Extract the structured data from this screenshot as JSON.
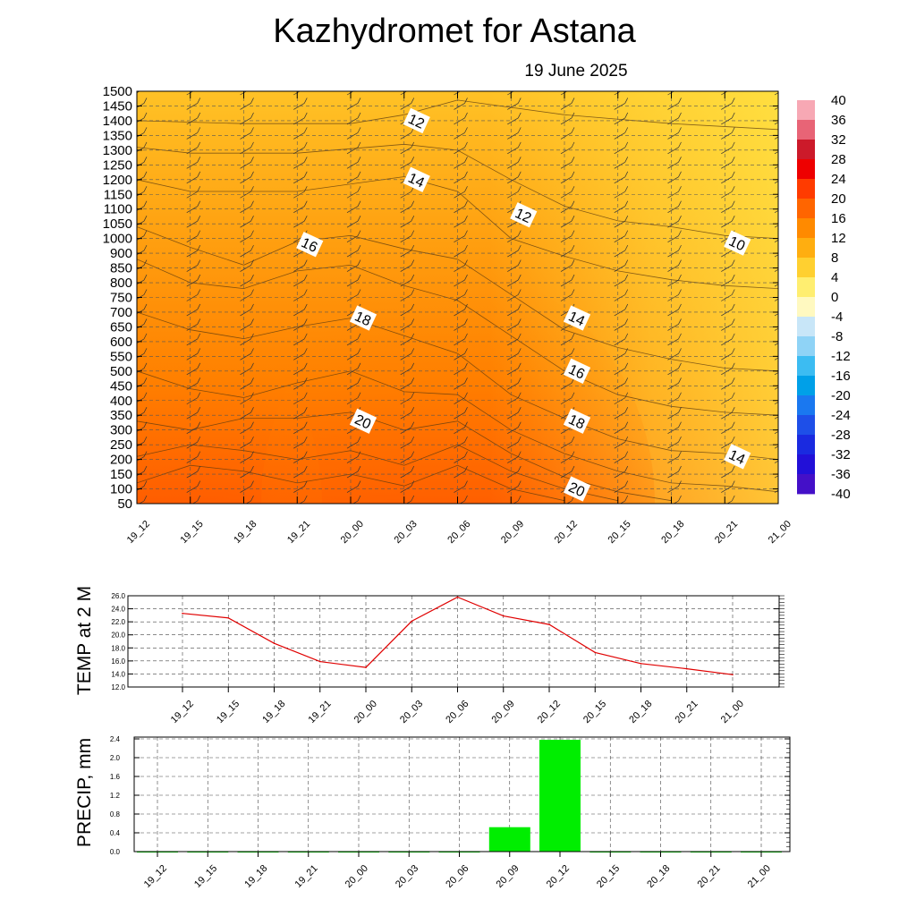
{
  "title": "Kazhydromet  for Astana",
  "subtitle": "19 June 2025",
  "time_labels": [
    "19_12",
    "19_15",
    "19_18",
    "19_21",
    "20_00",
    "20_03",
    "20_06",
    "20_09",
    "20_12",
    "20_15",
    "20_18",
    "20_21",
    "21_00"
  ],
  "chart_data": [
    {
      "type": "heatmap",
      "title": "",
      "description_hint": "",
      "x": [
        "19_12",
        "19_15",
        "19_18",
        "19_21",
        "20_00",
        "20_03",
        "20_06",
        "20_09",
        "20_12",
        "20_15",
        "20_18",
        "20_21",
        "21_00"
      ],
      "y_levels": [
        50,
        100,
        150,
        200,
        250,
        300,
        350,
        400,
        450,
        500,
        550,
        600,
        650,
        700,
        750,
        800,
        850,
        900,
        1000,
        1050,
        1100,
        1150,
        1200,
        1250,
        1300,
        1350,
        1400,
        1450,
        1500
      ],
      "y_ticks": [
        "1500",
        "1450",
        "1400",
        "1350",
        "1300",
        "1250",
        "1200",
        "1150",
        "1100",
        "1050",
        "1000",
        "900",
        "850",
        "800",
        "750",
        "700",
        "650",
        "600",
        "550",
        "500",
        "450",
        "400",
        "350",
        "300",
        "250",
        "200",
        "150",
        "100",
        "50"
      ],
      "colorbar": {
        "labels": [
          "40",
          "36",
          "32",
          "28",
          "24",
          "20",
          "16",
          "12",
          "8",
          "4",
          "0",
          "-4",
          "-8",
          "-12",
          "-16",
          "-20",
          "-24",
          "-28",
          "-32",
          "-36",
          "-40"
        ],
        "range": [
          -40,
          40
        ]
      },
      "contour_labels": [
        {
          "value": "12",
          "time": "20_03",
          "level": 1400
        },
        {
          "value": "14",
          "time": "20_03",
          "level": 1200
        },
        {
          "value": "12",
          "time": "20_09",
          "level": 1080
        },
        {
          "value": "16",
          "time": "19_21",
          "level": 960
        },
        {
          "value": "10",
          "time": "20_21",
          "level": 970
        },
        {
          "value": "18",
          "time": "20_00",
          "level": 680
        },
        {
          "value": "14",
          "time": "20_12",
          "level": 680
        },
        {
          "value": "16",
          "time": "20_12",
          "level": 500
        },
        {
          "value": "20",
          "time": "20_00",
          "level": 330
        },
        {
          "value": "18",
          "time": "20_12",
          "level": 330
        },
        {
          "value": "14",
          "time": "20_21",
          "level": 210
        },
        {
          "value": "20",
          "time": "20_12",
          "level": 100
        }
      ]
    },
    {
      "type": "line",
      "ylabel": "TEMP at 2 M",
      "x": [
        "19_12",
        "19_15",
        "19_18",
        "19_21",
        "20_00",
        "20_03",
        "20_06",
        "20_09",
        "20_12",
        "20_15",
        "20_18",
        "20_21",
        "21_00"
      ],
      "series": [
        {
          "values": [
            23.3,
            22.6,
            18.7,
            15.9,
            15.0,
            22.1,
            25.8,
            22.9,
            21.6,
            17.3,
            15.6,
            14.8,
            13.9
          ],
          "color": "#e00000"
        }
      ],
      "ylim": [
        12.0,
        26.0
      ],
      "y_ticks": [
        "26.0",
        "24.0",
        "22.0",
        "20.0",
        "18.0",
        "16.0",
        "14.0",
        "12.0"
      ]
    },
    {
      "type": "bar",
      "ylabel": "PRECIP, mm",
      "categories": [
        "19_12",
        "19_15",
        "19_18",
        "19_21",
        "20_00",
        "20_03",
        "20_06",
        "20_09",
        "20_12",
        "20_15",
        "20_18",
        "20_21",
        "21_00"
      ],
      "values": [
        0,
        0,
        0,
        0,
        0,
        0,
        0,
        0.52,
        2.38,
        0,
        0,
        0,
        0
      ],
      "color": "#00ee00",
      "ylim": [
        0.0,
        2.4
      ],
      "y_ticks": [
        "2.4",
        "2.0",
        "1.6",
        "1.2",
        "0.8",
        "0.4",
        "0.0"
      ]
    }
  ]
}
